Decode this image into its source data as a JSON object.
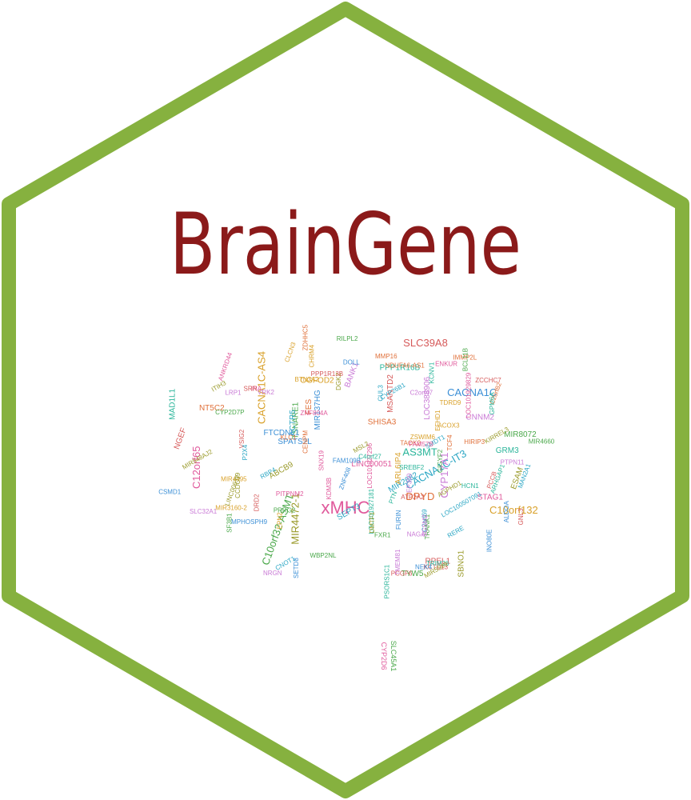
{
  "logo": {
    "title": "BrainGene",
    "colors": {
      "hex_border": "#86b13f",
      "title": "#8b1a1a",
      "background": "#ffffff"
    }
  },
  "word_cloud": {
    "palette": [
      "#e05a9c",
      "#d9a12a",
      "#2aa6c4",
      "#4aa84a",
      "#c97ad6",
      "#e0703a",
      "#3b8fd6",
      "#9a9a2a",
      "#d65a5a",
      "#2ab59a"
    ],
    "words": [
      "xMHC",
      "CACNA1C-AS4",
      "CACNA1C-IT3",
      "C10orf32-ASMT",
      "CYP17A1",
      "DPYD",
      "CACNA1C",
      "MIR4472-1",
      "SLC39A8",
      "AS3MT",
      "C12orf65",
      "C10orf132",
      "MIR2682",
      "TSNARE1",
      "CNNM2",
      "NT5C2",
      "MIR137HG",
      "ESAM",
      "RPEL1",
      "MAD1L1",
      "LINC00051",
      "OGFOD2",
      "ACTR5",
      "TYW5",
      "BANK1",
      "FES",
      "SPATS2L",
      "ABCB9",
      "MSANTD2",
      "GRM3",
      "STAG1",
      "ARL6IP4",
      "SEPT3",
      "MIR8072",
      "LOC388906",
      "SHISA3",
      "FTCDNL1",
      "SBNO1",
      "NGEF",
      "PPP1R16B",
      "KDM3B",
      "TDRD9",
      "CYP26B1",
      "GIGYF2",
      "C2orf47",
      "C2orf82",
      "SETD8",
      "MIR548AJ2",
      "PCGF6",
      "LOC101927181",
      "INA",
      "MIR4495",
      "C2orf69",
      "RILPL2",
      "SLC32A1",
      "TCF4",
      "MPHOSPH9",
      "KIRREL3",
      "VSIG2",
      "ARHGAP1",
      "PITPNM2",
      "EFHD1",
      "SMDT1",
      "CYP2D7P",
      "TMEM81",
      "NDUFA6-AS1",
      "ZNF408",
      "DGKZ",
      "PPP1R13B",
      "SREBF2",
      "LOC101927296",
      "ACOX3",
      "RBP4",
      "SF3B1",
      "VRK2",
      "TAOK2",
      "ALDOA",
      "AGPHD1",
      "KCTD13",
      "PSORS1C1",
      "ANKRD44",
      "MIR3160-2",
      "P2X4",
      "MIR4660",
      "NAGA",
      "CENPM",
      "DOLL",
      "LINC00637",
      "DRD2",
      "C4orf27",
      "ZNF804A",
      "CHRM4",
      "RERE",
      "WBP2NL",
      "EP300",
      "KLC1",
      "FAM109B",
      "DMTF1",
      "ATP2A2",
      "TRIM26",
      "SNX19",
      "CLCN3",
      "CNOT1",
      "TRANK1",
      "LRP1",
      "IMMP2L",
      "FURIN",
      "MSL2",
      "PCCB",
      "GPM6A",
      "FAM57B",
      "BTN3A2",
      "CUL3",
      "PRRG2",
      "NRGN",
      "ZDHHC5",
      "NEK4",
      "ITIH3",
      "GNL3",
      "HCN1",
      "ENKUR",
      "EPN2",
      "MAN2A1",
      "FXR1",
      "SGSM2",
      "MMP16",
      "CSMD1",
      "CCDC39",
      "SRR",
      "PTN",
      "LOC101929829",
      "ZSWIM6",
      "LOC100507091",
      "BCL11B",
      "PTPN11",
      "HIRIP3",
      "INO80E",
      "MIR5589",
      "ZCCHC7",
      "KCNV1"
    ],
    "hanging_words": [
      "CYP2D6",
      "SLC45A1"
    ]
  }
}
